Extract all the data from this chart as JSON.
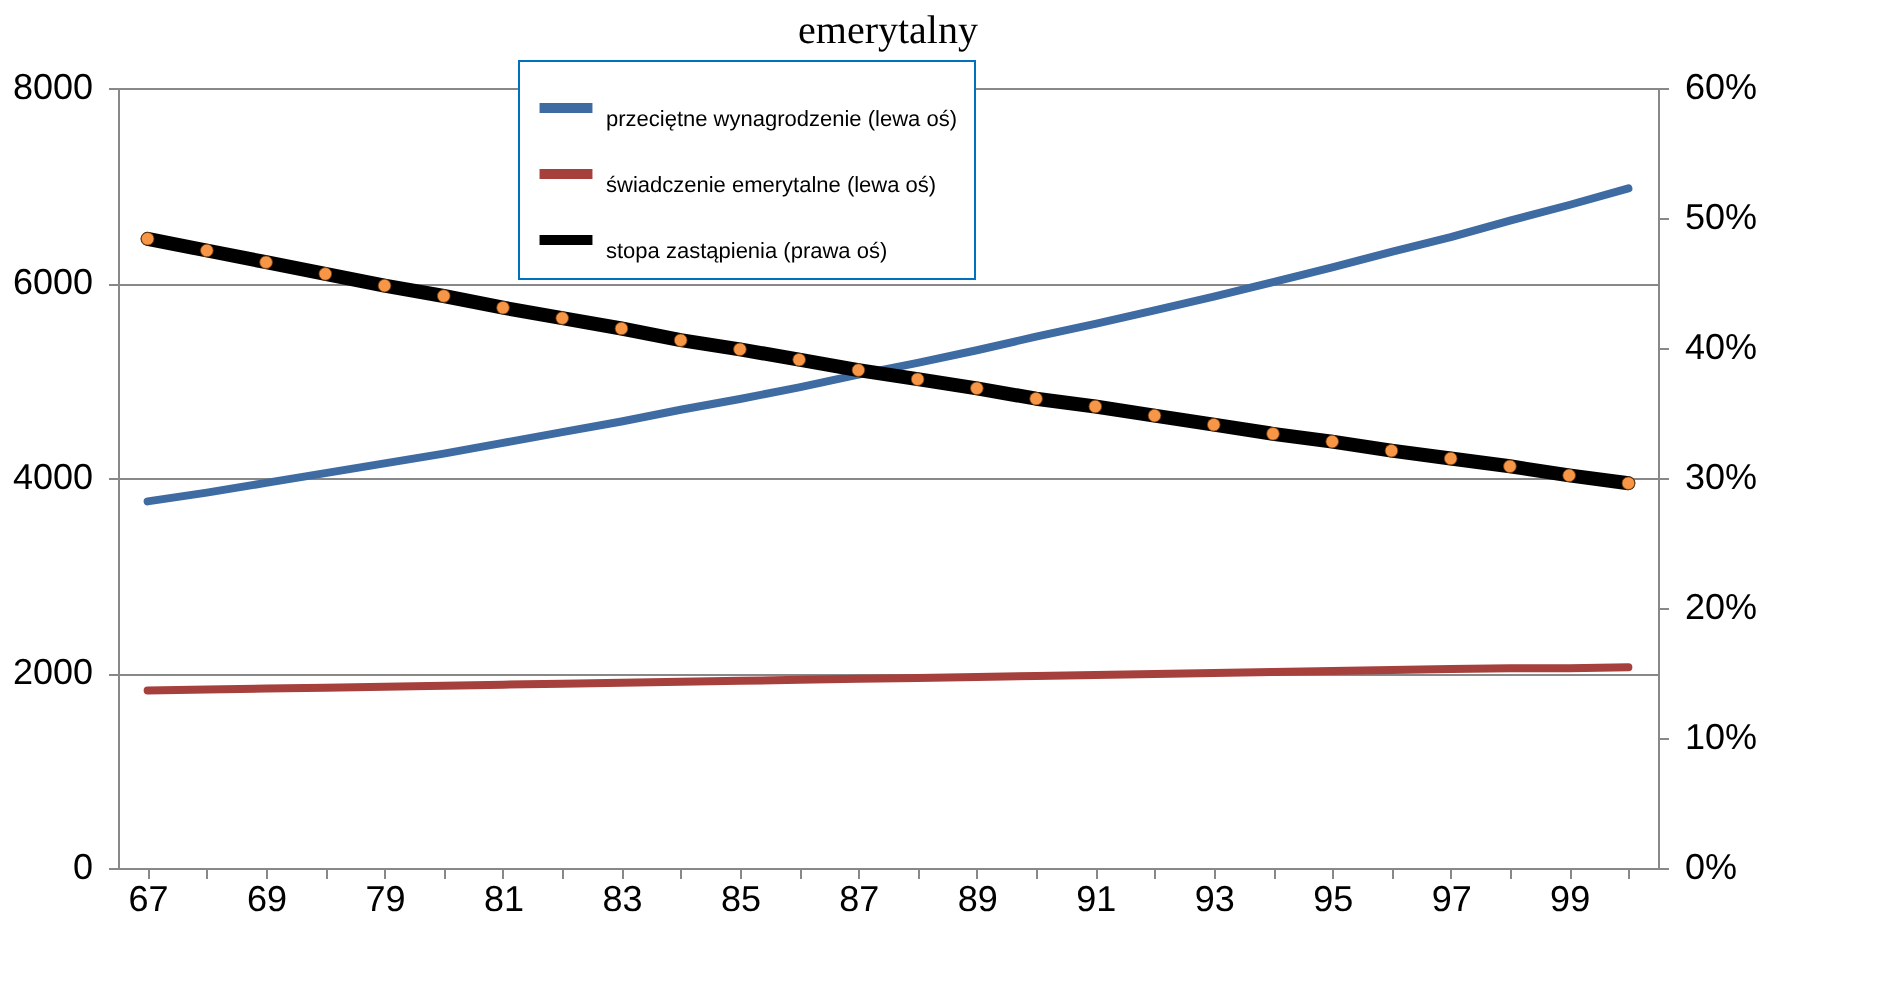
{
  "chart_data": {
    "type": "line",
    "title": "emerytalny",
    "categories": [
      "67",
      null,
      "69",
      null,
      "79",
      null,
      "81",
      null,
      "83",
      null,
      "85",
      null,
      "87",
      null,
      "89",
      null,
      "91",
      null,
      "93",
      null,
      "95",
      null,
      "97",
      null,
      "99",
      null
    ],
    "series": [
      {
        "name": "przeciętne wynagrodzenie (lewa oś)",
        "color": "#3f6ba3",
        "values": [
          3760,
          3850,
          3950,
          4050,
          4150,
          4250,
          4360,
          4470,
          4580,
          4700,
          4810,
          4930,
          5060,
          5180,
          5310,
          5450,
          5580,
          5720,
          5860,
          6010,
          6160,
          6320,
          6470,
          6640,
          6800,
          6970
        ]
      },
      {
        "name": "świadczenie emerytalne (lewa oś)",
        "color": "#a5403c",
        "values": [
          1820,
          1830,
          1840,
          1850,
          1860,
          1870,
          1880,
          1890,
          1900,
          1910,
          1920,
          1930,
          1940,
          1950,
          1960,
          1970,
          1980,
          1990,
          2000,
          2010,
          2020,
          2030,
          2040,
          2050,
          2050,
          2060
        ]
      },
      {
        "name": "stopa zastąpienia (prawa oś)",
        "color": "#000000",
        "axis": "y2",
        "marker": "circle",
        "values": [
          48.4,
          47.5,
          46.6,
          45.7,
          44.8,
          44.0,
          43.1,
          42.3,
          41.5,
          40.6,
          39.9,
          39.1,
          38.3,
          37.6,
          36.9,
          36.1,
          35.5,
          34.8,
          34.1,
          33.4,
          32.8,
          32.1,
          31.5,
          30.9,
          30.2,
          29.6
        ]
      }
    ],
    "ylim": [
      0,
      8000
    ],
    "yticks": [
      0,
      2000,
      4000,
      6000,
      8000
    ],
    "y2lim": [
      0,
      60
    ],
    "y2ticks": [
      {
        "value": 0,
        "label": "0%"
      },
      {
        "value": 10,
        "label": "10%"
      },
      {
        "value": 20,
        "label": "20%"
      },
      {
        "value": 30,
        "label": "30%"
      },
      {
        "value": 40,
        "label": "40%"
      },
      {
        "value": 50,
        "label": "50%"
      },
      {
        "value": 60,
        "label": "60%"
      }
    ],
    "grid": "y",
    "legend": "top"
  }
}
